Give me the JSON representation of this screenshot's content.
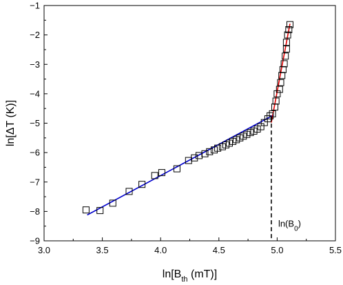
{
  "chart_data": {
    "type": "scatter",
    "xlabel": "ln[B",
    "xlabel_sub": "th",
    "xlabel_tail": " (mT)]",
    "ylabel": "ln[ΔT (K)]",
    "xlim": [
      3.0,
      5.5
    ],
    "ylim": [
      -9,
      -1
    ],
    "x_ticks": [
      3.0,
      3.5,
      4.0,
      4.5,
      5.0,
      5.5
    ],
    "x_tick_labels": [
      "3.0",
      "3.5",
      "4.0",
      "4.5",
      "5.0",
      "5.5"
    ],
    "y_ticks": [
      -9,
      -8,
      -7,
      -6,
      -5,
      -4,
      -3,
      -2,
      -1
    ],
    "y_tick_labels": [
      "−9",
      "−8",
      "−7",
      "−6",
      "−5",
      "−4",
      "−3",
      "−2",
      "−1"
    ],
    "grid": false,
    "series": [
      {
        "marker": "open-square",
        "color": "#000000",
        "points": [
          [
            3.36,
            -7.95
          ],
          [
            3.48,
            -7.97
          ],
          [
            3.59,
            -7.72
          ],
          [
            3.73,
            -7.32
          ],
          [
            3.84,
            -7.08
          ],
          [
            3.95,
            -6.78
          ],
          [
            4.01,
            -6.68
          ],
          [
            4.14,
            -6.55
          ],
          [
            4.24,
            -6.27
          ],
          [
            4.29,
            -6.18
          ],
          [
            4.33,
            -6.1
          ],
          [
            4.38,
            -6.04
          ],
          [
            4.42,
            -5.97
          ],
          [
            4.46,
            -5.91
          ],
          [
            4.49,
            -5.85
          ],
          [
            4.53,
            -5.8
          ],
          [
            4.56,
            -5.74
          ],
          [
            4.59,
            -5.68
          ],
          [
            4.62,
            -5.62
          ],
          [
            4.65,
            -5.56
          ],
          [
            4.68,
            -5.5
          ],
          [
            4.71,
            -5.44
          ],
          [
            4.74,
            -5.38
          ],
          [
            4.77,
            -5.32
          ],
          [
            4.8,
            -5.27
          ],
          [
            4.83,
            -5.2
          ],
          [
            4.86,
            -5.12
          ],
          [
            4.89,
            -4.98
          ],
          [
            4.92,
            -4.85
          ],
          [
            4.94,
            -4.75
          ],
          [
            4.96,
            -4.68
          ],
          [
            4.98,
            -4.45
          ],
          [
            4.99,
            -4.25
          ],
          [
            5.0,
            -4.0
          ],
          [
            5.02,
            -3.85
          ],
          [
            5.03,
            -3.62
          ],
          [
            5.04,
            -3.38
          ],
          [
            5.05,
            -3.18
          ],
          [
            5.06,
            -2.98
          ],
          [
            5.07,
            -2.72
          ],
          [
            5.08,
            -2.48
          ],
          [
            5.08,
            -2.25
          ],
          [
            5.09,
            -2.0
          ],
          [
            5.1,
            -1.82
          ],
          [
            5.11,
            -1.65
          ]
        ]
      }
    ],
    "fit_lines": [
      {
        "color": "#0000cc",
        "points": [
          [
            3.37,
            -8.12
          ],
          [
            4.97,
            -4.72
          ]
        ]
      },
      {
        "color": "#e00000",
        "points": [
          [
            4.95,
            -4.98
          ],
          [
            5.11,
            -1.62
          ]
        ]
      }
    ],
    "annotation": {
      "text": "ln(B",
      "sub": "0",
      "tail": ")",
      "x": 4.95,
      "y_top": -4.78
    }
  }
}
